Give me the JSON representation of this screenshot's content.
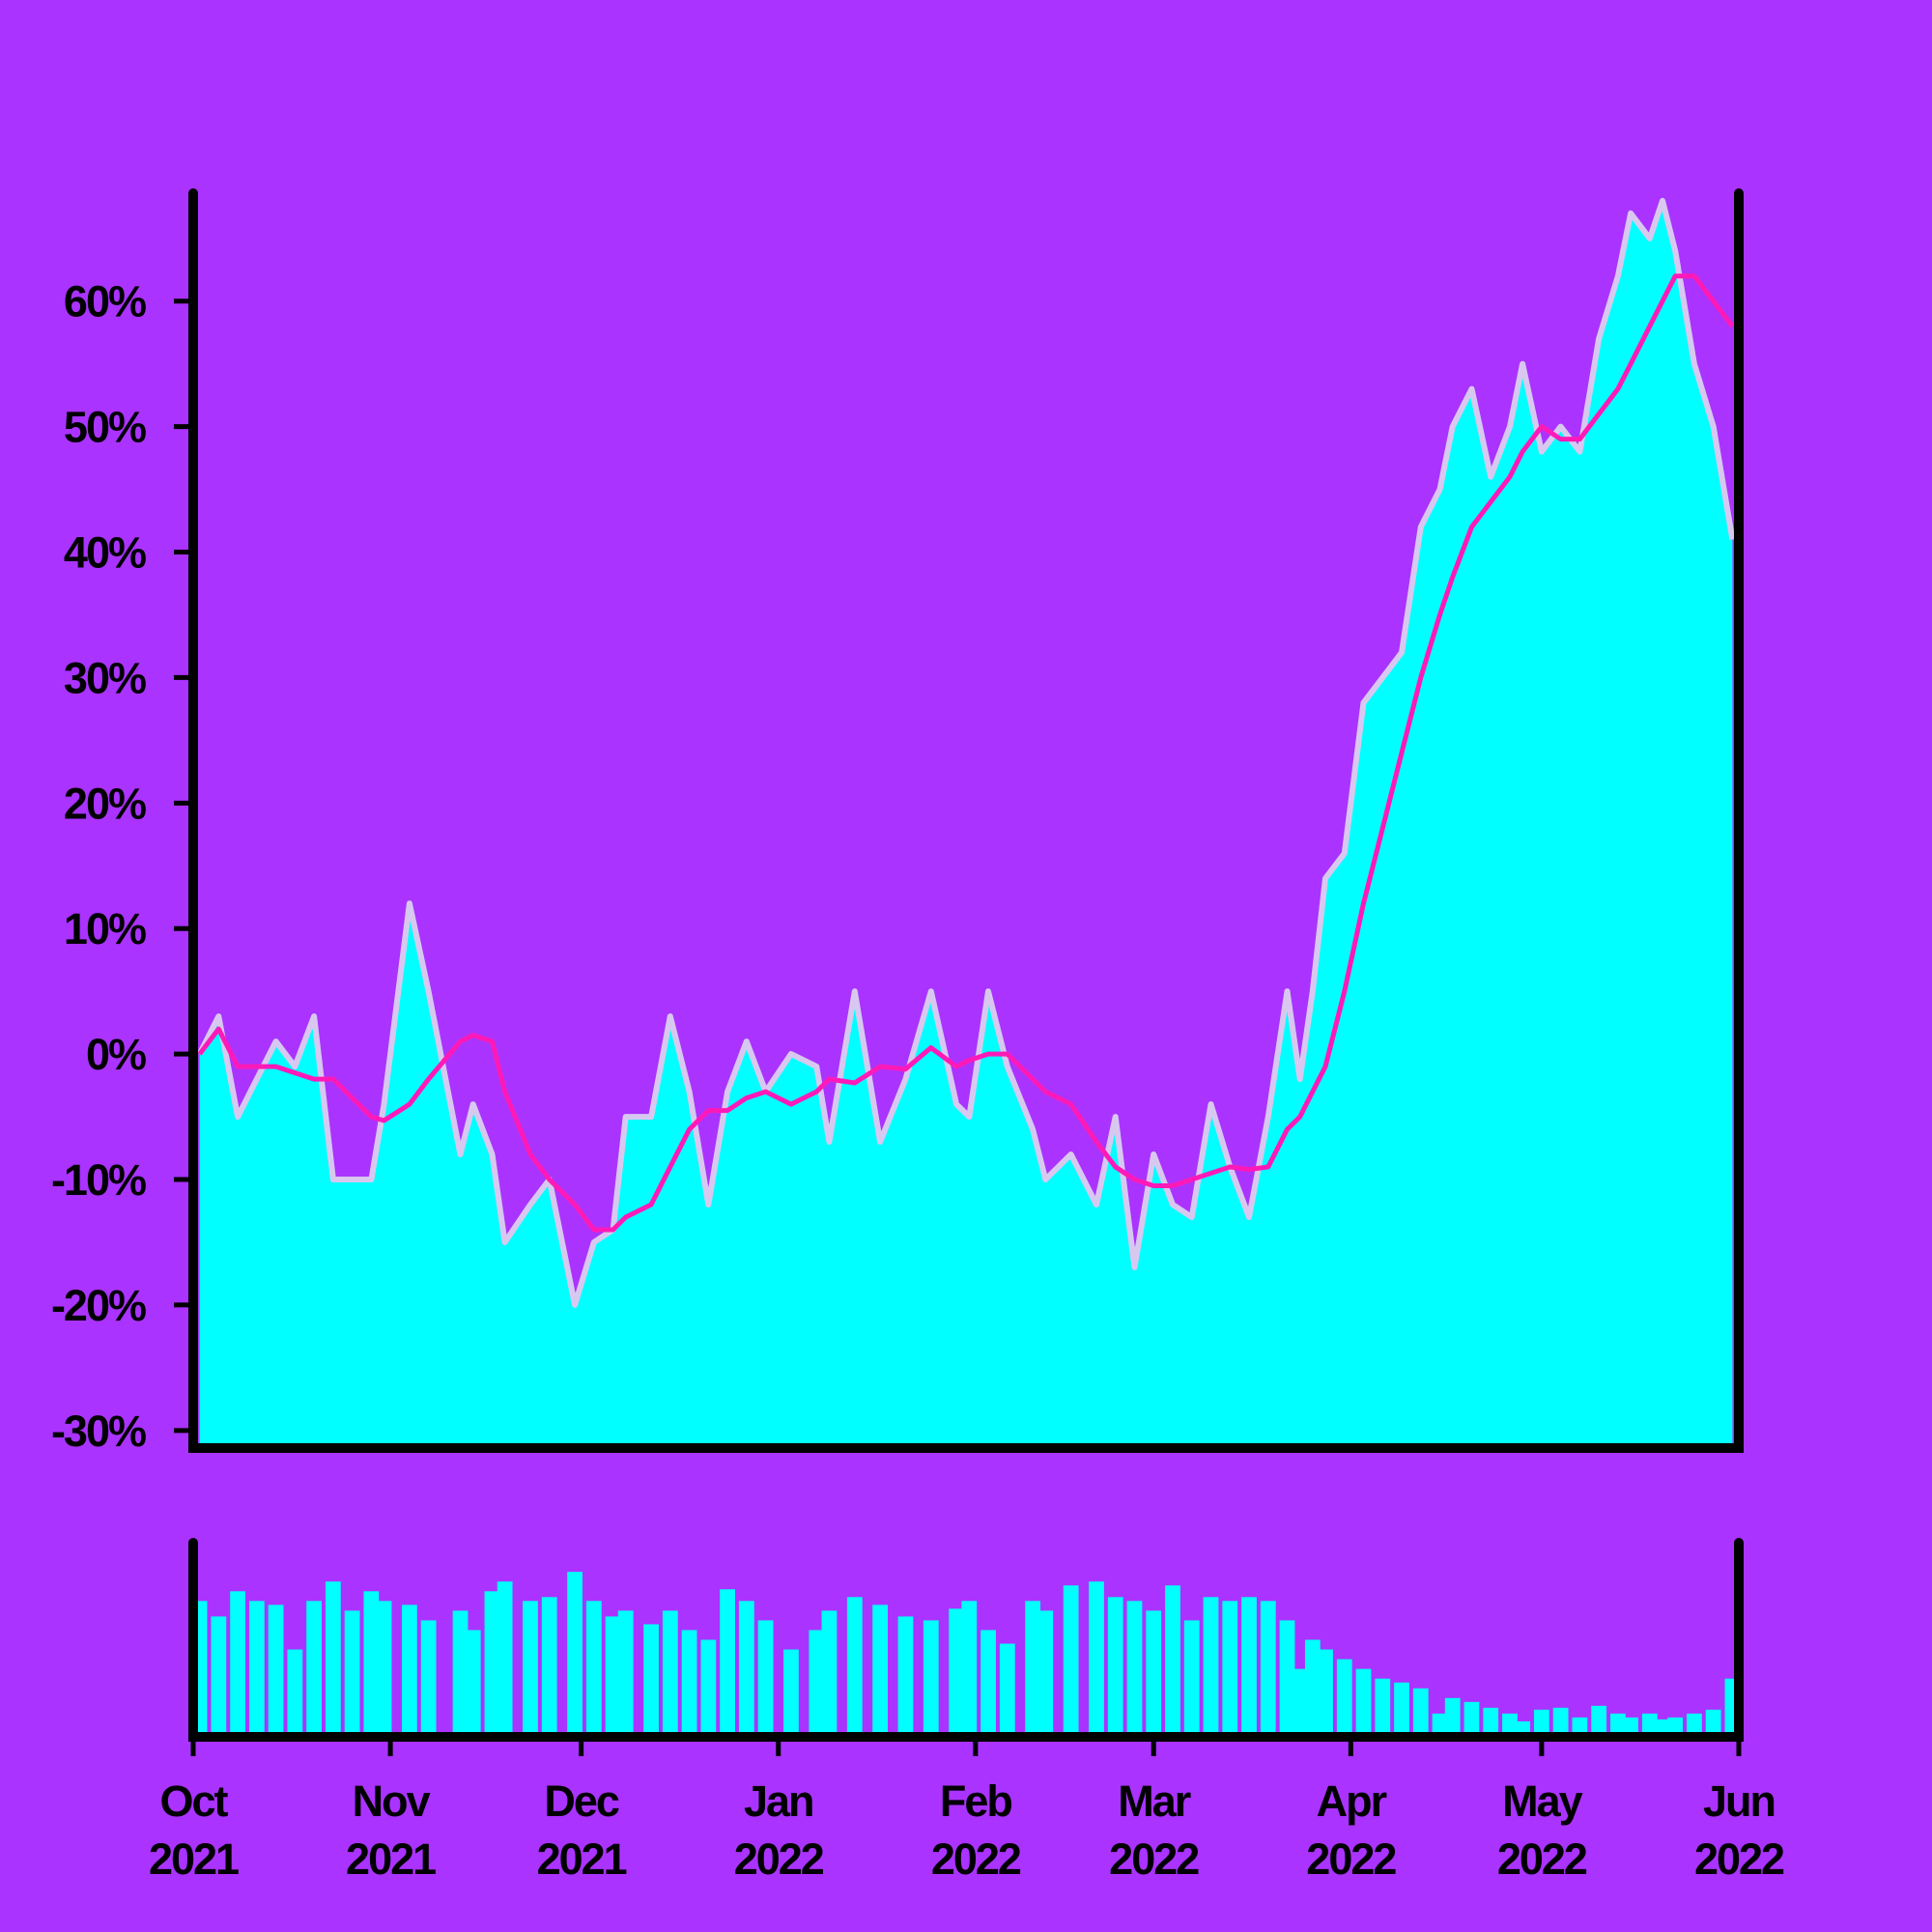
{
  "chart_data": [
    {
      "type": "area",
      "xlim": [
        0,
        243
      ],
      "ylim": [
        -31.4,
        68.6
      ],
      "yticks": [
        {
          "value": -30,
          "label": "-30%"
        },
        {
          "value": -20,
          "label": "-20%"
        },
        {
          "value": -10,
          "label": "-10%"
        },
        {
          "value": 0,
          "label": "0%"
        },
        {
          "value": 10,
          "label": "10%"
        },
        {
          "value": 20,
          "label": "20%"
        },
        {
          "value": 30,
          "label": "30%"
        },
        {
          "value": 40,
          "label": "40%"
        },
        {
          "value": 50,
          "label": "50%"
        },
        {
          "value": 60,
          "label": "60%"
        }
      ],
      "x": [
        1,
        4,
        7,
        10,
        13,
        16,
        19,
        22,
        25,
        28,
        30,
        34,
        37,
        42,
        44,
        47,
        49,
        53,
        56,
        60,
        63,
        66,
        68,
        72,
        75,
        78,
        81,
        84,
        87,
        90,
        94,
        98,
        100,
        104,
        108,
        112,
        116,
        120,
        122,
        125,
        128,
        132,
        134,
        138,
        142,
        145,
        148,
        151,
        154,
        157,
        160,
        163,
        166,
        169,
        172,
        174,
        176,
        178,
        181,
        184,
        187,
        190,
        193,
        196,
        198,
        201,
        204,
        207,
        209,
        212,
        215,
        218,
        221,
        224,
        226,
        229,
        231,
        233,
        236,
        239,
        242
      ],
      "series": [
        {
          "type": "area",
          "color": "#00ffff",
          "edge": "#d8c8f0",
          "values": [
            0,
            3,
            -5,
            -2,
            1,
            -1,
            3,
            -10,
            -10,
            -10,
            -4,
            12,
            5,
            -8,
            -4,
            -8,
            -15,
            -12,
            -10,
            -20,
            -15,
            -14,
            -5,
            -5,
            3,
            -3,
            -12,
            -3,
            1,
            -3,
            0,
            -1,
            -7,
            5,
            -7,
            -2,
            5,
            -4,
            -5,
            5,
            -1,
            -6,
            -10,
            -8,
            -12,
            -5,
            -17,
            -8,
            -12,
            -13,
            -4,
            -9,
            -13,
            -5,
            5,
            -2,
            5,
            14,
            16,
            28,
            30,
            32,
            42,
            45,
            50,
            53,
            46,
            50,
            55,
            48,
            50,
            48,
            57,
            62,
            67,
            65,
            68,
            64,
            55,
            50,
            41
          ]
        },
        {
          "type": "line",
          "color": "#ff1ab8",
          "values": [
            0,
            2,
            -1,
            -1,
            -1,
            -1.5,
            -2,
            -2,
            -3.5,
            -5,
            -5.3,
            -4,
            -2,
            1,
            1.5,
            1,
            -3,
            -8,
            -10,
            -12,
            -14,
            -14,
            -13,
            -12,
            -9,
            -6,
            -4.5,
            -4.5,
            -3.5,
            -3,
            -4,
            -3,
            -2,
            -2.3,
            -1,
            -1.2,
            0.5,
            -1,
            -0.5,
            0,
            0,
            -2,
            -3,
            -4,
            -7,
            -9,
            -10,
            -10.5,
            -10.5,
            -10,
            -9.5,
            -9,
            -9.2,
            -9,
            -6,
            -5,
            -3,
            -1,
            5,
            12,
            18,
            24,
            30,
            35,
            38,
            42,
            44,
            46,
            48,
            50,
            49,
            49,
            51,
            53,
            55,
            58,
            60,
            62,
            62,
            60,
            58
          ]
        }
      ]
    },
    {
      "type": "bar",
      "color": "#00ffff",
      "xlim": [
        0,
        243
      ],
      "ylim": [
        0,
        100
      ],
      "xticks": [
        {
          "value": 0,
          "label": "Oct 2021"
        },
        {
          "value": 31,
          "label": "Nov 2021"
        },
        {
          "value": 61,
          "label": "Dec 2021"
        },
        {
          "value": 92,
          "label": "Jan 2022"
        },
        {
          "value": 123,
          "label": "Feb 2022"
        },
        {
          "value": 151,
          "label": "Mar 2022"
        },
        {
          "value": 182,
          "label": "Apr 2022"
        },
        {
          "value": 212,
          "label": "May 2022"
        },
        {
          "value": 243,
          "label": "Jun 2022"
        }
      ],
      "x": [
        1,
        4,
        7,
        10,
        13,
        16,
        19,
        22,
        25,
        28,
        30,
        34,
        37,
        42,
        44,
        47,
        49,
        53,
        56,
        60,
        63,
        66,
        68,
        72,
        75,
        78,
        81,
        84,
        87,
        90,
        94,
        98,
        100,
        104,
        108,
        112,
        116,
        120,
        122,
        125,
        128,
        132,
        134,
        138,
        142,
        145,
        148,
        151,
        154,
        157,
        160,
        163,
        166,
        169,
        172,
        174,
        176,
        178,
        181,
        184,
        187,
        190,
        193,
        196,
        198,
        201,
        204,
        207,
        209,
        212,
        215,
        218,
        221,
        224,
        226,
        229,
        231,
        233,
        236,
        239,
        242
      ],
      "values": [
        70,
        62,
        75,
        70,
        68,
        45,
        70,
        80,
        65,
        75,
        70,
        68,
        60,
        65,
        55,
        75,
        80,
        70,
        72,
        85,
        70,
        62,
        65,
        58,
        65,
        55,
        50,
        76,
        70,
        60,
        45,
        55,
        65,
        72,
        68,
        62,
        60,
        66,
        70,
        55,
        48,
        70,
        65,
        78,
        80,
        72,
        70,
        65,
        78,
        60,
        72,
        70,
        72,
        70,
        60,
        35,
        50,
        45,
        40,
        35,
        30,
        28,
        25,
        12,
        20,
        18,
        15,
        12,
        8,
        14,
        15,
        10,
        16,
        12,
        10,
        12,
        9,
        10,
        12,
        14,
        30
      ]
    }
  ]
}
